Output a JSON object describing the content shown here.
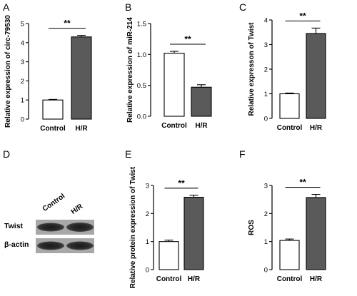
{
  "panels": {
    "A": "A",
    "B": "B",
    "C": "C",
    "D": "D",
    "E": "E",
    "F": "F"
  },
  "chart_data": [
    {
      "id": "A",
      "type": "bar",
      "categories": [
        "Control",
        "H/R"
      ],
      "values": [
        1.0,
        4.3
      ],
      "errors": [
        0.03,
        0.08
      ],
      "ylabel": "Relative expression of circ-79530",
      "ylim": [
        0,
        5
      ],
      "yticks": [
        0,
        1,
        2,
        3,
        4,
        5
      ],
      "significance": "**",
      "bar_colors": [
        "#ffffff",
        "#5a5a5a"
      ]
    },
    {
      "id": "B",
      "type": "bar",
      "categories": [
        "Control",
        "H/R"
      ],
      "values": [
        1.02,
        0.47
      ],
      "errors": [
        0.03,
        0.04
      ],
      "ylabel": "Relative expression of miR-214",
      "ylim": [
        0,
        1.5
      ],
      "yticks": [
        0.0,
        0.5,
        1.0,
        1.5
      ],
      "ytick_labels": [
        "0.0",
        "0.5",
        "1.0",
        "1.5"
      ],
      "significance": "**",
      "bar_colors": [
        "#ffffff",
        "#5a5a5a"
      ]
    },
    {
      "id": "C",
      "type": "bar",
      "categories": [
        "Control",
        "H/R"
      ],
      "values": [
        1.0,
        3.45
      ],
      "errors": [
        0.03,
        0.22
      ],
      "ylabel": "Relative expresson of Twist",
      "ylim": [
        0,
        4
      ],
      "yticks": [
        0,
        1,
        2,
        3,
        4
      ],
      "significance": "**",
      "bar_colors": [
        "#ffffff",
        "#5a5a5a"
      ]
    },
    {
      "id": "E",
      "type": "bar",
      "categories": [
        "Control",
        "H/R"
      ],
      "values": [
        1.0,
        2.58
      ],
      "errors": [
        0.05,
        0.07
      ],
      "ylabel": "Relative protein expression of Twist",
      "ylim": [
        0,
        3
      ],
      "yticks": [
        0,
        1,
        2,
        3
      ],
      "significance": "**",
      "bar_colors": [
        "#ffffff",
        "#5a5a5a"
      ]
    },
    {
      "id": "F",
      "type": "bar",
      "categories": [
        "Control",
        "H/R"
      ],
      "values": [
        1.04,
        2.57
      ],
      "errors": [
        0.05,
        0.11
      ],
      "ylabel": "ROS",
      "ylim": [
        0,
        3
      ],
      "yticks": [
        0,
        1,
        2,
        3
      ],
      "significance": "**",
      "bar_colors": [
        "#ffffff",
        "#5a5a5a"
      ]
    }
  ],
  "western_blot": {
    "lane_labels": [
      "Control",
      "H/R"
    ],
    "rows": [
      {
        "label": "Twist"
      },
      {
        "label": "β-actin"
      }
    ]
  }
}
